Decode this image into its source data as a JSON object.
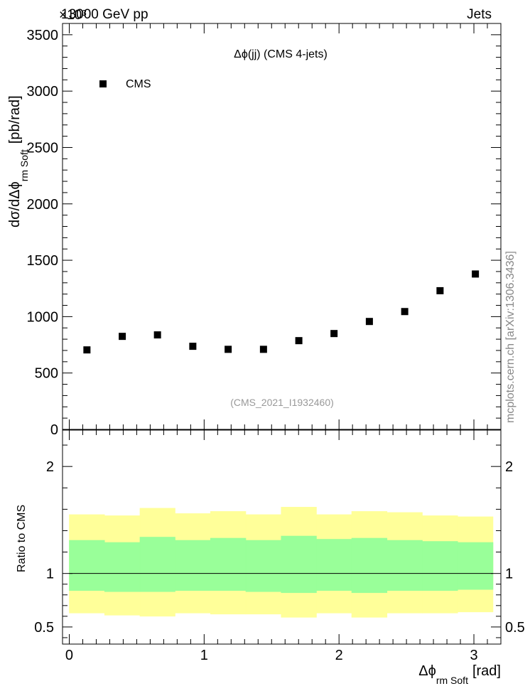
{
  "header": {
    "left": "13000 GeV pp",
    "right": "Jets",
    "exponent": "×10³"
  },
  "side_label": "mcplots.cern.ch [arXiv:1306.3436]",
  "chart_data": [
    {
      "type": "scatter",
      "annotation": "Δϕ(jj) (CMS 4-jets)",
      "source_label": "(CMS_2021_I1932460)",
      "ylabel": "dσ/dΔϕ",
      "ylabel_sub": "rm Soft",
      "ylabel_unit": "[pb/rad]",
      "ylim": [
        0,
        3600
      ],
      "yticks": [
        0,
        500,
        1000,
        1500,
        2000,
        2500,
        3000,
        3500
      ],
      "ytick_labels": [
        "0",
        "500",
        "1000",
        "1500",
        "2000",
        "2500",
        "3000",
        "3500"
      ],
      "xlim": [
        -0.05,
        3.2
      ],
      "series": [
        {
          "name": "CMS",
          "color": "#000000",
          "marker": "square",
          "x": [
            0.131,
            0.393,
            0.654,
            0.916,
            1.178,
            1.44,
            1.702,
            1.963,
            2.225,
            2.487,
            2.749,
            3.011
          ],
          "values": [
            705,
            825,
            838,
            737,
            710,
            710,
            787,
            850,
            957,
            1045,
            1230,
            1378
          ]
        }
      ]
    },
    {
      "type": "area",
      "ylabel": "Ratio to CMS",
      "xlabel": "Δϕ",
      "xlabel_sub": "rm Soft",
      "xlabel_unit": "[rad]",
      "xlim": [
        -0.05,
        3.2
      ],
      "xticks": [
        0,
        1,
        2,
        3
      ],
      "xtick_labels": [
        "0",
        "1",
        "2",
        "3"
      ],
      "ylim": [
        0.34,
        2.34
      ],
      "yticks": [
        0.5,
        1,
        2
      ],
      "ytick_labels": [
        "0.5",
        "1",
        "2"
      ],
      "reference_line": 1,
      "bin_edges": [
        0.0,
        0.262,
        0.524,
        0.785,
        1.047,
        1.309,
        1.571,
        1.833,
        2.094,
        2.356,
        2.618,
        2.88,
        3.142
      ],
      "bands": [
        {
          "color": "#ffff99",
          "low": [
            0.63,
            0.61,
            0.6,
            0.63,
            0.62,
            0.62,
            0.59,
            0.63,
            0.59,
            0.63,
            0.63,
            0.64
          ],
          "high": [
            1.55,
            1.54,
            1.61,
            1.56,
            1.58,
            1.55,
            1.62,
            1.55,
            1.58,
            1.57,
            1.54,
            1.53
          ]
        },
        {
          "color": "#99ff99",
          "low": [
            0.84,
            0.83,
            0.83,
            0.84,
            0.84,
            0.83,
            0.82,
            0.84,
            0.82,
            0.84,
            0.84,
            0.85
          ],
          "high": [
            1.31,
            1.29,
            1.34,
            1.31,
            1.33,
            1.31,
            1.35,
            1.32,
            1.33,
            1.31,
            1.3,
            1.29
          ]
        }
      ]
    }
  ]
}
